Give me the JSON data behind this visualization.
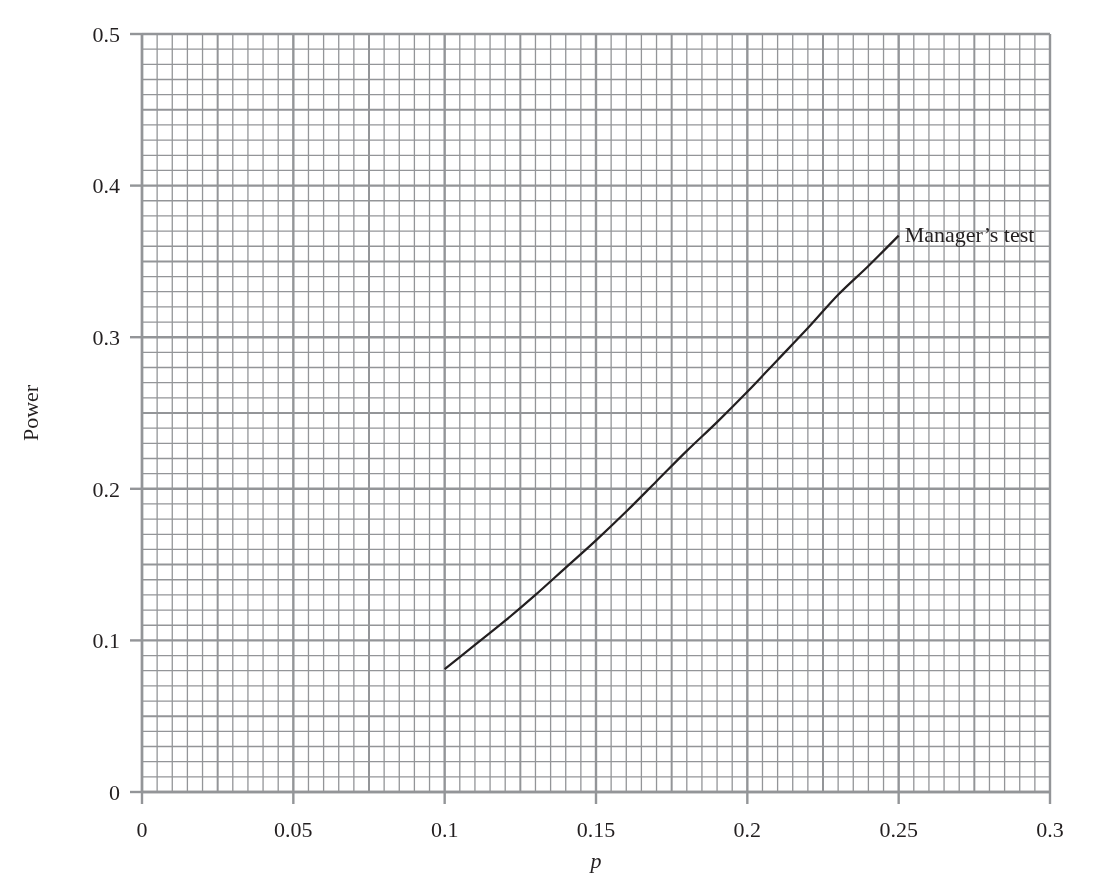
{
  "chart_data": {
    "type": "line",
    "xlabel": "p",
    "ylabel": "Power",
    "x": [
      0.1,
      0.11,
      0.12,
      0.13,
      0.14,
      0.15,
      0.16,
      0.17,
      0.18,
      0.19,
      0.2,
      0.21,
      0.22,
      0.23,
      0.24,
      0.25
    ],
    "series": [
      {
        "color": "#231f20",
        "values": [
          0.081,
          0.097,
          0.113,
          0.13,
          0.148,
          0.166,
          0.185,
          0.205,
          0.225,
          0.244,
          0.264,
          0.285,
          0.306,
          0.328,
          0.347,
          0.367
        ]
      }
    ],
    "annotations": [
      {
        "text": "Manager’s test",
        "x": 0.25,
        "y": 0.367
      }
    ],
    "xlim": [
      0,
      0.3
    ],
    "xticks": [
      0,
      0.05,
      0.1,
      0.15,
      0.2,
      0.25,
      0.3
    ],
    "ylim": [
      0,
      0.5
    ],
    "yticks": [
      0,
      0.1,
      0.2,
      0.3,
      0.4,
      0.5
    ],
    "grid": true,
    "marker": "none",
    "line_style": "solid"
  }
}
